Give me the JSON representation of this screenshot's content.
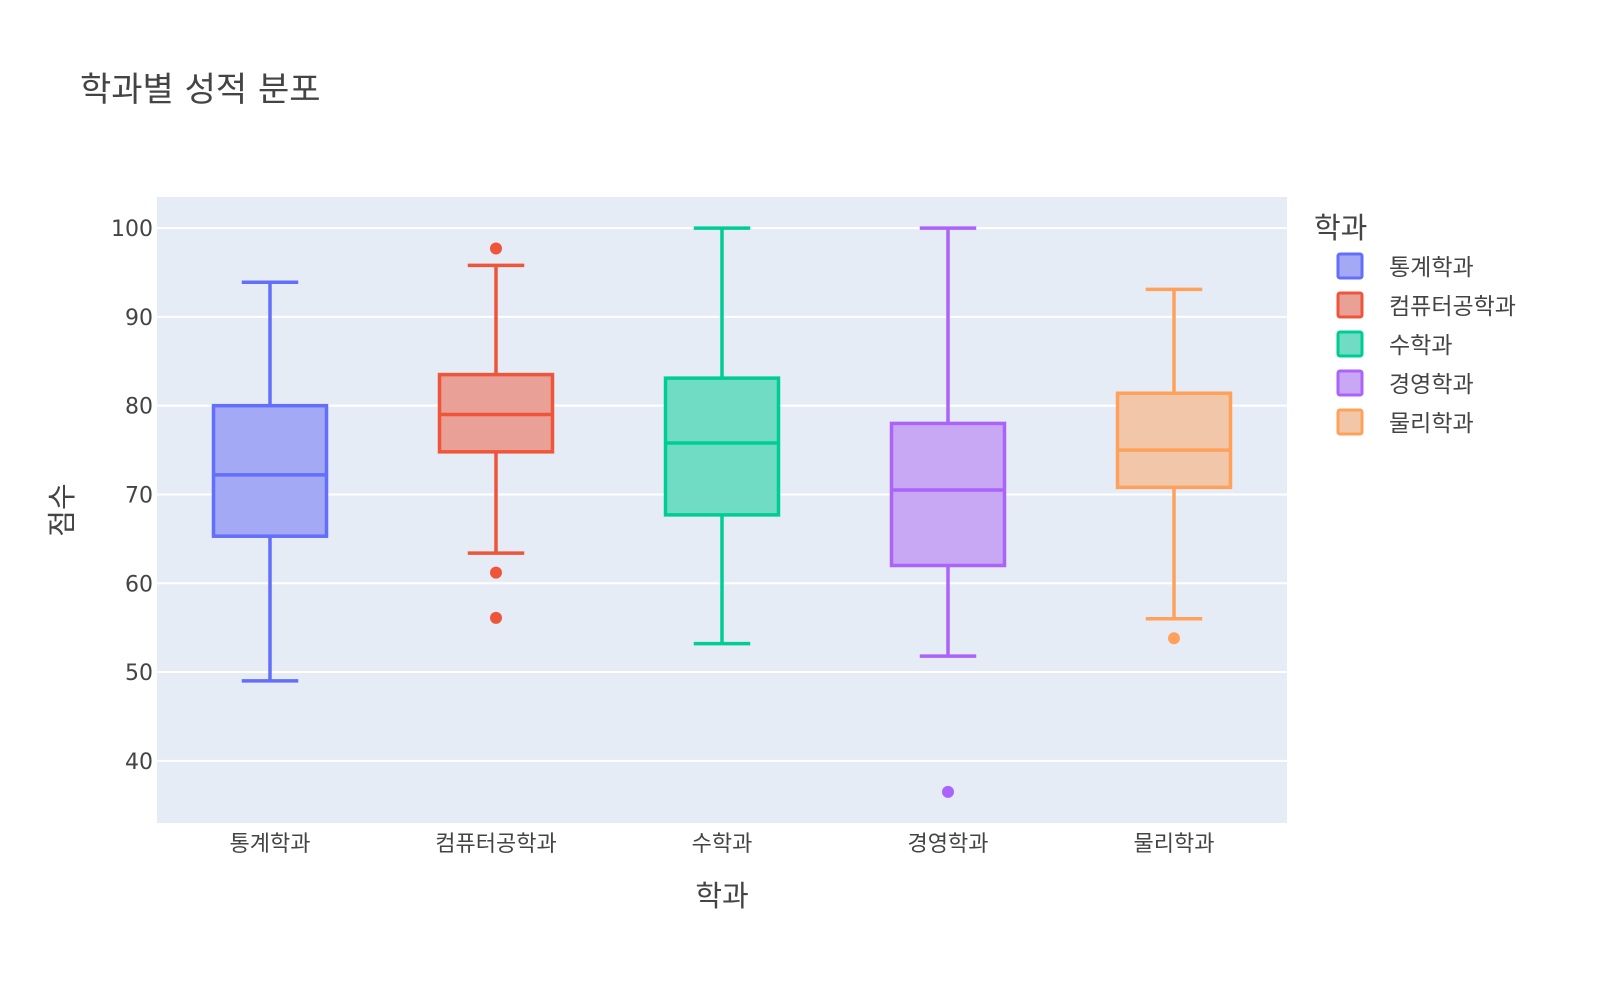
{
  "chart_data": {
    "type": "box",
    "title": "학과별 성적 분포",
    "xlabel": "학과",
    "ylabel": "점수",
    "ylim": [
      33,
      103.5
    ],
    "yticks": [
      40,
      50,
      60,
      70,
      80,
      90,
      100
    ],
    "grid": true,
    "legend_title": "학과",
    "legend_position": "right",
    "categories": [
      "통계학과",
      "컴퓨터공학과",
      "수학과",
      "경영학과",
      "물리학과"
    ],
    "series": [
      {
        "name": "통계학과",
        "color": "#636efa",
        "fill": "#a3a9f4",
        "whisker_low": 49.0,
        "q1": 65.3,
        "median": 72.2,
        "q3": 80.0,
        "whisker_high": 93.9,
        "outliers": []
      },
      {
        "name": "컴퓨터공학과",
        "color": "#ef553b",
        "fill": "#e9a096",
        "whisker_low": 63.4,
        "q1": 74.8,
        "median": 79.0,
        "q3": 83.5,
        "whisker_high": 95.8,
        "outliers": [
          97.7,
          61.2,
          56.1
        ]
      },
      {
        "name": "수학과",
        "color": "#00cc96",
        "fill": "#70dcc3",
        "whisker_low": 53.2,
        "q1": 67.7,
        "median": 75.8,
        "q3": 83.1,
        "whisker_high": 100.0,
        "outliers": []
      },
      {
        "name": "경영학과",
        "color": "#ab63fa",
        "fill": "#c8a8f4",
        "whisker_low": 51.8,
        "q1": 62.0,
        "median": 70.5,
        "q3": 78.0,
        "whisker_high": 100.0,
        "outliers": [
          36.5
        ]
      },
      {
        "name": "물리학과",
        "color": "#ffa15a",
        "fill": "#f2c6a8",
        "whisker_low": 56.0,
        "q1": 70.8,
        "median": 75.0,
        "q3": 81.4,
        "whisker_high": 93.1,
        "outliers": [
          53.8
        ]
      }
    ]
  }
}
